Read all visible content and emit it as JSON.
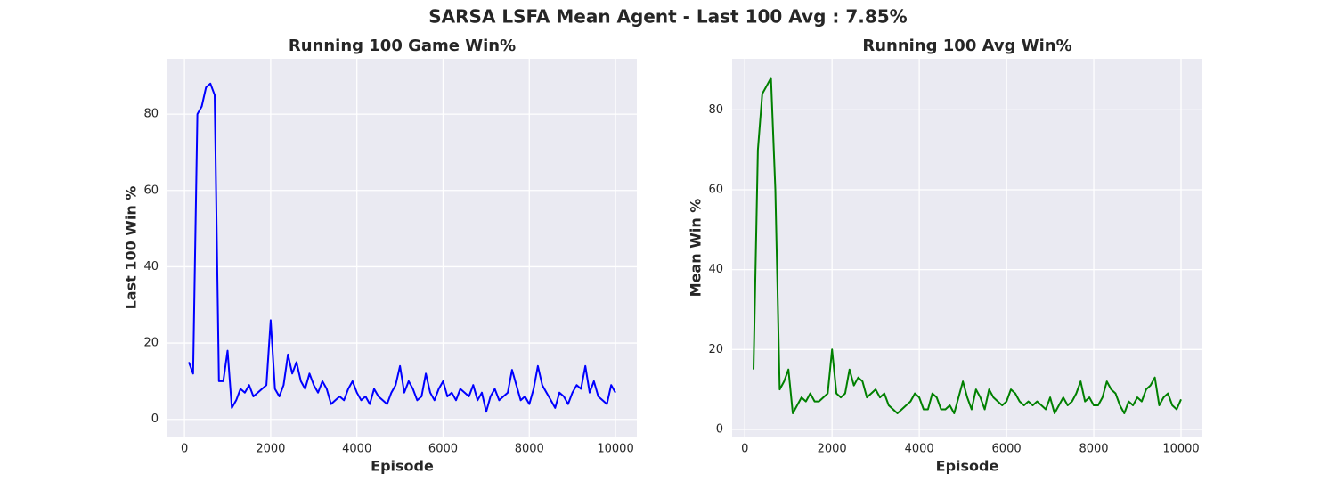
{
  "figure_title": "SARSA LSFA Mean Agent -  Last 100 Avg : 7.85%",
  "chart_data": [
    {
      "type": "line",
      "title": "Running 100 Game Win%",
      "x_label": "Episode",
      "y_label": "Last 100 Win %",
      "x": [
        100,
        200,
        300,
        400,
        500,
        600,
        700,
        800,
        900,
        1000,
        1100,
        1200,
        1300,
        1400,
        1500,
        1600,
        1700,
        1800,
        1900,
        2000,
        2100,
        2200,
        2300,
        2400,
        2500,
        2600,
        2700,
        2800,
        2900,
        3000,
        3100,
        3200,
        3300,
        3400,
        3500,
        3600,
        3700,
        3800,
        3900,
        4000,
        4100,
        4200,
        4300,
        4400,
        4500,
        4600,
        4700,
        4800,
        4900,
        5000,
        5100,
        5200,
        5300,
        5400,
        5500,
        5600,
        5700,
        5800,
        5900,
        6000,
        6100,
        6200,
        6300,
        6400,
        6500,
        6600,
        6700,
        6800,
        6900,
        7000,
        7100,
        7200,
        7300,
        7400,
        7500,
        7600,
        7700,
        7800,
        7900,
        8000,
        8100,
        8200,
        8300,
        8400,
        8500,
        8600,
        8700,
        8800,
        8900,
        9000,
        9100,
        9200,
        9300,
        9400,
        9500,
        9600,
        9700,
        9800,
        9900,
        10000
      ],
      "series": [
        {
          "name": "Last 100 Win %",
          "color": "#0000ff",
          "values": [
            15,
            12,
            80,
            82,
            87,
            88,
            85,
            10,
            10,
            18,
            3,
            5,
            8,
            7,
            9,
            6,
            7,
            8,
            9,
            26,
            8,
            6,
            9,
            17,
            12,
            15,
            10,
            8,
            12,
            9,
            7,
            10,
            8,
            4,
            5,
            6,
            5,
            8,
            10,
            7,
            5,
            6,
            4,
            8,
            6,
            5,
            4,
            7,
            9,
            14,
            7,
            10,
            8,
            5,
            6,
            12,
            7,
            5,
            8,
            10,
            6,
            7,
            5,
            8,
            7,
            6,
            9,
            5,
            7,
            2,
            6,
            8,
            5,
            6,
            7,
            13,
            9,
            5,
            6,
            4,
            8,
            14,
            9,
            7,
            5,
            3,
            7,
            6,
            4,
            7,
            9,
            8,
            14,
            7,
            10,
            6,
            5,
            4,
            9,
            7
          ]
        }
      ],
      "xlim": [
        -395,
        10495
      ],
      "xticks": [
        0,
        2000,
        4000,
        6000,
        8000,
        10000
      ],
      "ylim": [
        -4.5,
        94.5
      ],
      "yticks": [
        0,
        20,
        40,
        60,
        80
      ],
      "grid": true
    },
    {
      "type": "line",
      "title": "Running 100 Avg Win%",
      "x_label": "Episode",
      "y_label": "Mean Win %",
      "x": [
        200,
        300,
        400,
        500,
        600,
        700,
        800,
        900,
        1000,
        1100,
        1200,
        1300,
        1400,
        1500,
        1600,
        1700,
        1800,
        1900,
        2000,
        2100,
        2200,
        2300,
        2400,
        2500,
        2600,
        2700,
        2800,
        2900,
        3000,
        3100,
        3200,
        3300,
        3400,
        3500,
        3600,
        3700,
        3800,
        3900,
        4000,
        4100,
        4200,
        4300,
        4400,
        4500,
        4600,
        4700,
        4800,
        4900,
        5000,
        5100,
        5200,
        5300,
        5400,
        5500,
        5600,
        5700,
        5800,
        5900,
        6000,
        6100,
        6200,
        6300,
        6400,
        6500,
        6600,
        6700,
        6800,
        6900,
        7000,
        7100,
        7200,
        7300,
        7400,
        7500,
        7600,
        7700,
        7800,
        7900,
        8000,
        8100,
        8200,
        8300,
        8400,
        8500,
        8600,
        8700,
        8800,
        8900,
        9000,
        9100,
        9200,
        9300,
        9400,
        9500,
        9600,
        9700,
        9800,
        9900,
        10000
      ],
      "series": [
        {
          "name": "Mean Win %",
          "color": "#008000",
          "values": [
            15,
            70,
            84,
            86,
            88,
            60,
            10,
            12,
            15,
            4,
            6,
            8,
            7,
            9,
            7,
            7,
            8,
            9,
            20,
            9,
            8,
            9,
            15,
            11,
            13,
            12,
            8,
            9,
            10,
            8,
            9,
            6,
            5,
            4,
            5,
            6,
            7,
            9,
            8,
            5,
            5,
            9,
            8,
            5,
            5,
            6,
            4,
            8,
            12,
            8,
            5,
            10,
            8,
            5,
            10,
            8,
            7,
            6,
            7,
            10,
            9,
            7,
            6,
            7,
            6,
            7,
            6,
            5,
            8,
            4,
            6,
            8,
            6,
            7,
            9,
            12,
            7,
            8,
            6,
            6,
            8,
            12,
            10,
            9,
            6,
            4,
            7,
            6,
            8,
            7,
            10,
            11,
            13,
            6,
            8,
            9,
            6,
            5,
            7.5
          ]
        }
      ],
      "xlim": [
        -290,
        10490
      ],
      "xticks": [
        0,
        2000,
        4000,
        6000,
        8000,
        10000
      ],
      "ylim": [
        -1.8,
        92.8
      ],
      "yticks": [
        0,
        20,
        40,
        60,
        80
      ],
      "grid": true
    }
  ]
}
